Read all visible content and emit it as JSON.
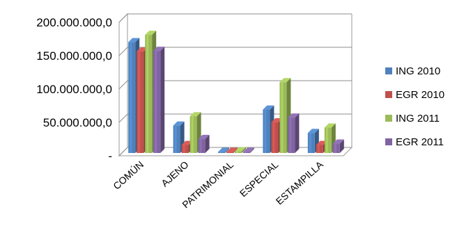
{
  "chart_data": {
    "type": "bar",
    "categories": [
      "COMÚN",
      "AJENO",
      "PATRIMONIAL",
      "ESPECIAL",
      "ESTAMPILLA"
    ],
    "series": [
      {
        "name": "ING 2010",
        "color": "#4F81BD",
        "values": [
          166000000,
          41000000,
          1500000,
          65000000,
          30000000
        ]
      },
      {
        "name": "EGR 2010",
        "color": "#C0504D",
        "values": [
          152000000,
          12000000,
          1500000,
          46000000,
          12000000
        ]
      },
      {
        "name": "ING 2011",
        "color": "#9BBB59",
        "values": [
          177000000,
          55000000,
          2500000,
          106000000,
          38000000
        ]
      },
      {
        "name": "EGR 2011",
        "color": "#8064A2",
        "values": [
          153000000,
          21000000,
          1500000,
          53000000,
          14000000
        ]
      }
    ],
    "yticks": [
      {
        "value": 0,
        "label": "-"
      },
      {
        "value": 50000000,
        "label": "50.000.000,0"
      },
      {
        "value": 100000000,
        "label": "100.000.000,0"
      },
      {
        "value": 150000000,
        "label": "150.000.000,0"
      },
      {
        "value": 200000000,
        "label": "200.000.000,0"
      }
    ],
    "ylim": [
      0,
      200000000
    ],
    "title": "",
    "xlabel": "",
    "ylabel": "",
    "grid": true,
    "legend": "right"
  }
}
